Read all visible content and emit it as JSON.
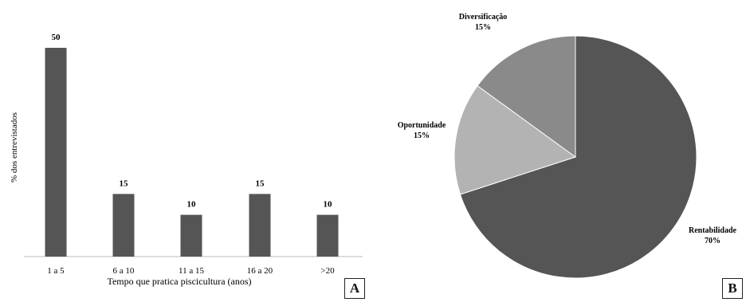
{
  "chart_data": [
    {
      "type": "bar",
      "panel": "A",
      "categories": [
        "1 a 5",
        "6 a 10",
        "11 a 15",
        "16 a 20",
        ">20"
      ],
      "values": [
        50,
        15,
        10,
        15,
        10
      ],
      "data_labels": [
        "50",
        "15",
        "10",
        "15",
        "10"
      ],
      "xlabel": "Tempo que pratica piscicultura (anos)",
      "ylabel": "% dos entrevistados",
      "ylim": [
        0,
        50
      ],
      "grid": false,
      "bar_color": "#555555"
    },
    {
      "type": "pie",
      "panel": "B",
      "slices": [
        {
          "label": "Rentabilidade",
          "value": 70,
          "value_label": "70%",
          "color": "#555555"
        },
        {
          "label": "Oportunidade",
          "value": 15,
          "value_label": "15%",
          "color": "#b3b3b3"
        },
        {
          "label": "Diversificação",
          "value": 15,
          "value_label": "15%",
          "color": "#8a8a8a"
        }
      ]
    }
  ]
}
